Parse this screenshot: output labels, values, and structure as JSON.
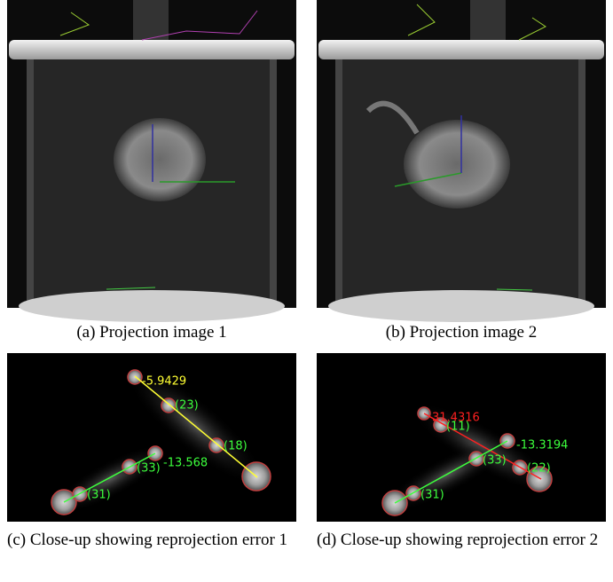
{
  "figure": {
    "panels": [
      {
        "caption": "(a) Projection image 1"
      },
      {
        "caption": "(b) Projection image 2"
      },
      {
        "caption": "(c) Close-up showing reprojection error 1",
        "labels": [
          "-5.9429",
          "(23)",
          "(18)",
          "(33)",
          "-13.568",
          "(31)"
        ]
      },
      {
        "caption": "(d) Close-up showing reprojection error 2",
        "labels": [
          "31.4316",
          "(11)",
          "(22)",
          "-13.3194",
          "(33)",
          "(31)"
        ]
      }
    ]
  }
}
